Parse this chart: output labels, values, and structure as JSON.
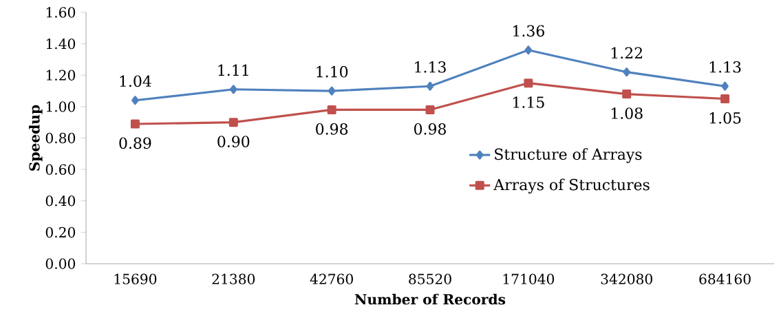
{
  "chart_data": {
    "type": "line",
    "xlabel": "Number of Records",
    "ylabel": "Speedup",
    "categories": [
      "15690",
      "21380",
      "42760",
      "85520",
      "171040",
      "342080",
      "684160"
    ],
    "series": [
      {
        "name": "Structure of Arrays",
        "color": "#4f81bd",
        "marker": "diamond",
        "values": [
          1.04,
          1.11,
          1.1,
          1.13,
          1.36,
          1.22,
          1.13
        ],
        "value_labels": [
          "1.04",
          "1.11",
          "1.10",
          "1.13",
          "1.36",
          "1.22",
          "1.13"
        ]
      },
      {
        "name": "Arrays of Structures",
        "color": "#c0504d",
        "marker": "square",
        "values": [
          0.89,
          0.9,
          0.98,
          0.98,
          1.15,
          1.08,
          1.05
        ],
        "value_labels": [
          "0.89",
          "0.90",
          "0.98",
          "0.98",
          "1.15",
          "1.08",
          "1.05"
        ]
      }
    ],
    "ylim": [
      0,
      1.6
    ],
    "yticks": [
      {
        "value": 0,
        "label": "0.00"
      },
      {
        "value": 0.2,
        "label": "0.20"
      },
      {
        "value": 0.4,
        "label": "0.40"
      },
      {
        "value": 0.6,
        "label": "0.60"
      },
      {
        "value": 0.8,
        "label": "0.80"
      },
      {
        "value": 1.0,
        "label": "1.00"
      },
      {
        "value": 1.2,
        "label": "1.20"
      },
      {
        "value": 1.4,
        "label": "1.40"
      },
      {
        "value": 1.6,
        "label": "1.60"
      }
    ],
    "grid": false,
    "legend": "right",
    "line_style": "solid"
  }
}
